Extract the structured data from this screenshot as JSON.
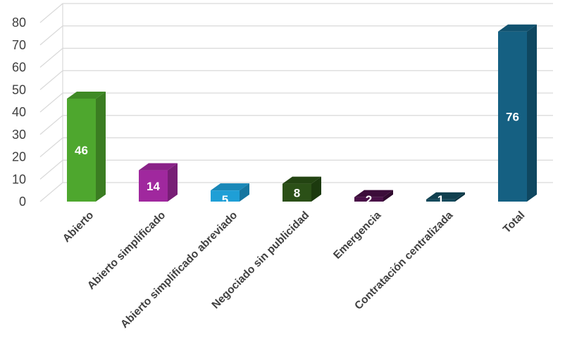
{
  "chart_data": {
    "type": "bar",
    "title": "",
    "xlabel": "",
    "ylabel": "",
    "ylim": [
      0,
      80
    ],
    "yticks": [
      0,
      10,
      20,
      30,
      40,
      50,
      60,
      70,
      80
    ],
    "grid": true,
    "legend": "none",
    "categories": [
      "Abierto",
      "Abierto simplificado",
      "Abierto simplificado abreviado",
      "Negociado sin publicidad",
      "Emergencia",
      "Contratación centralizada",
      "Total"
    ],
    "values": [
      46,
      14,
      5,
      8,
      2,
      1,
      76
    ],
    "colors": [
      {
        "front": "#4ea72e",
        "side": "#3b7d22",
        "top": "#3f8a25"
      },
      {
        "front": "#a0289e",
        "side": "#781e76",
        "top": "#8a2288"
      },
      {
        "front": "#1f9fd6",
        "side": "#1676a0",
        "top": "#1a88b8"
      },
      {
        "front": "#2b5017",
        "side": "#1c3a0e",
        "top": "#234412"
      },
      {
        "front": "#4a1048",
        "side": "#300a2e",
        "top": "#3c0d3a"
      },
      {
        "front": "#154a5c",
        "side": "#0c3442",
        "top": "#10404f"
      },
      {
        "front": "#156082",
        "side": "#0f4760",
        "top": "#11526f"
      }
    ]
  }
}
